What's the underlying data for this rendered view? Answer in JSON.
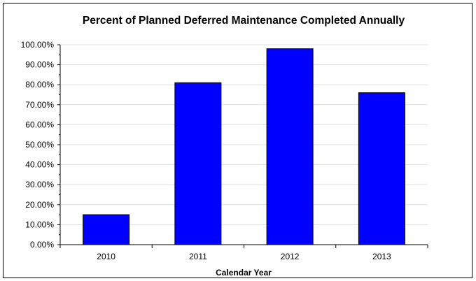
{
  "chart_data": {
    "type": "bar",
    "title": "Percent of Planned Deferred Maintenance Completed Annually",
    "xlabel": "Calendar Year",
    "ylabel": "",
    "categories": [
      "2010",
      "2011",
      "2012",
      "2013"
    ],
    "values": [
      15,
      81,
      98,
      76
    ],
    "ylim": [
      0,
      100
    ],
    "yticks": [
      "0.00%",
      "10.00%",
      "20.00%",
      "30.00%",
      "40.00%",
      "50.00%",
      "60.00%",
      "70.00%",
      "80.00%",
      "90.00%",
      "100.00%"
    ],
    "grid": true,
    "legend": "none",
    "bar_color": "#0000ff",
    "gridline_color": "#e0e0e0"
  }
}
